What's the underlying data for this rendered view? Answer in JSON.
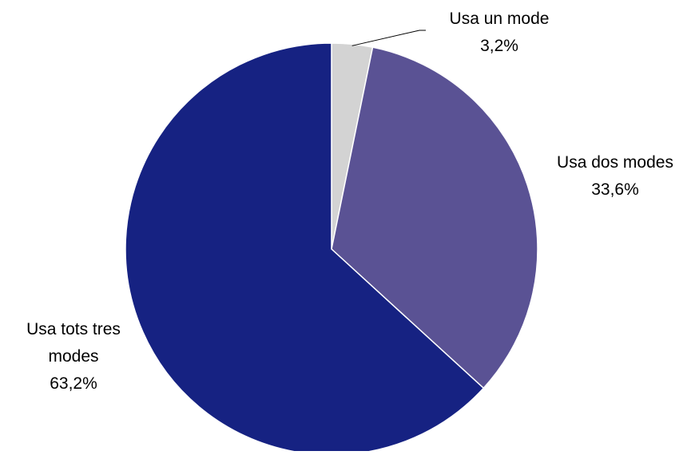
{
  "chart_data": {
    "type": "pie",
    "title": "",
    "start_angle_deg": 0,
    "direction": "clockwise",
    "slices": [
      {
        "label_lines": [
          "Usa un mode"
        ],
        "value": 3.2,
        "value_label": "3,2%",
        "color": "#d3d3d3"
      },
      {
        "label_lines": [
          "Usa dos modes"
        ],
        "value": 33.6,
        "value_label": "33,6%",
        "color": "#5a5294"
      },
      {
        "label_lines": [
          "Usa tots tres",
          "modes"
        ],
        "value": 63.2,
        "value_label": "63,2%",
        "color": "#162282"
      }
    ],
    "legend": "none",
    "data_labels": "outside"
  }
}
